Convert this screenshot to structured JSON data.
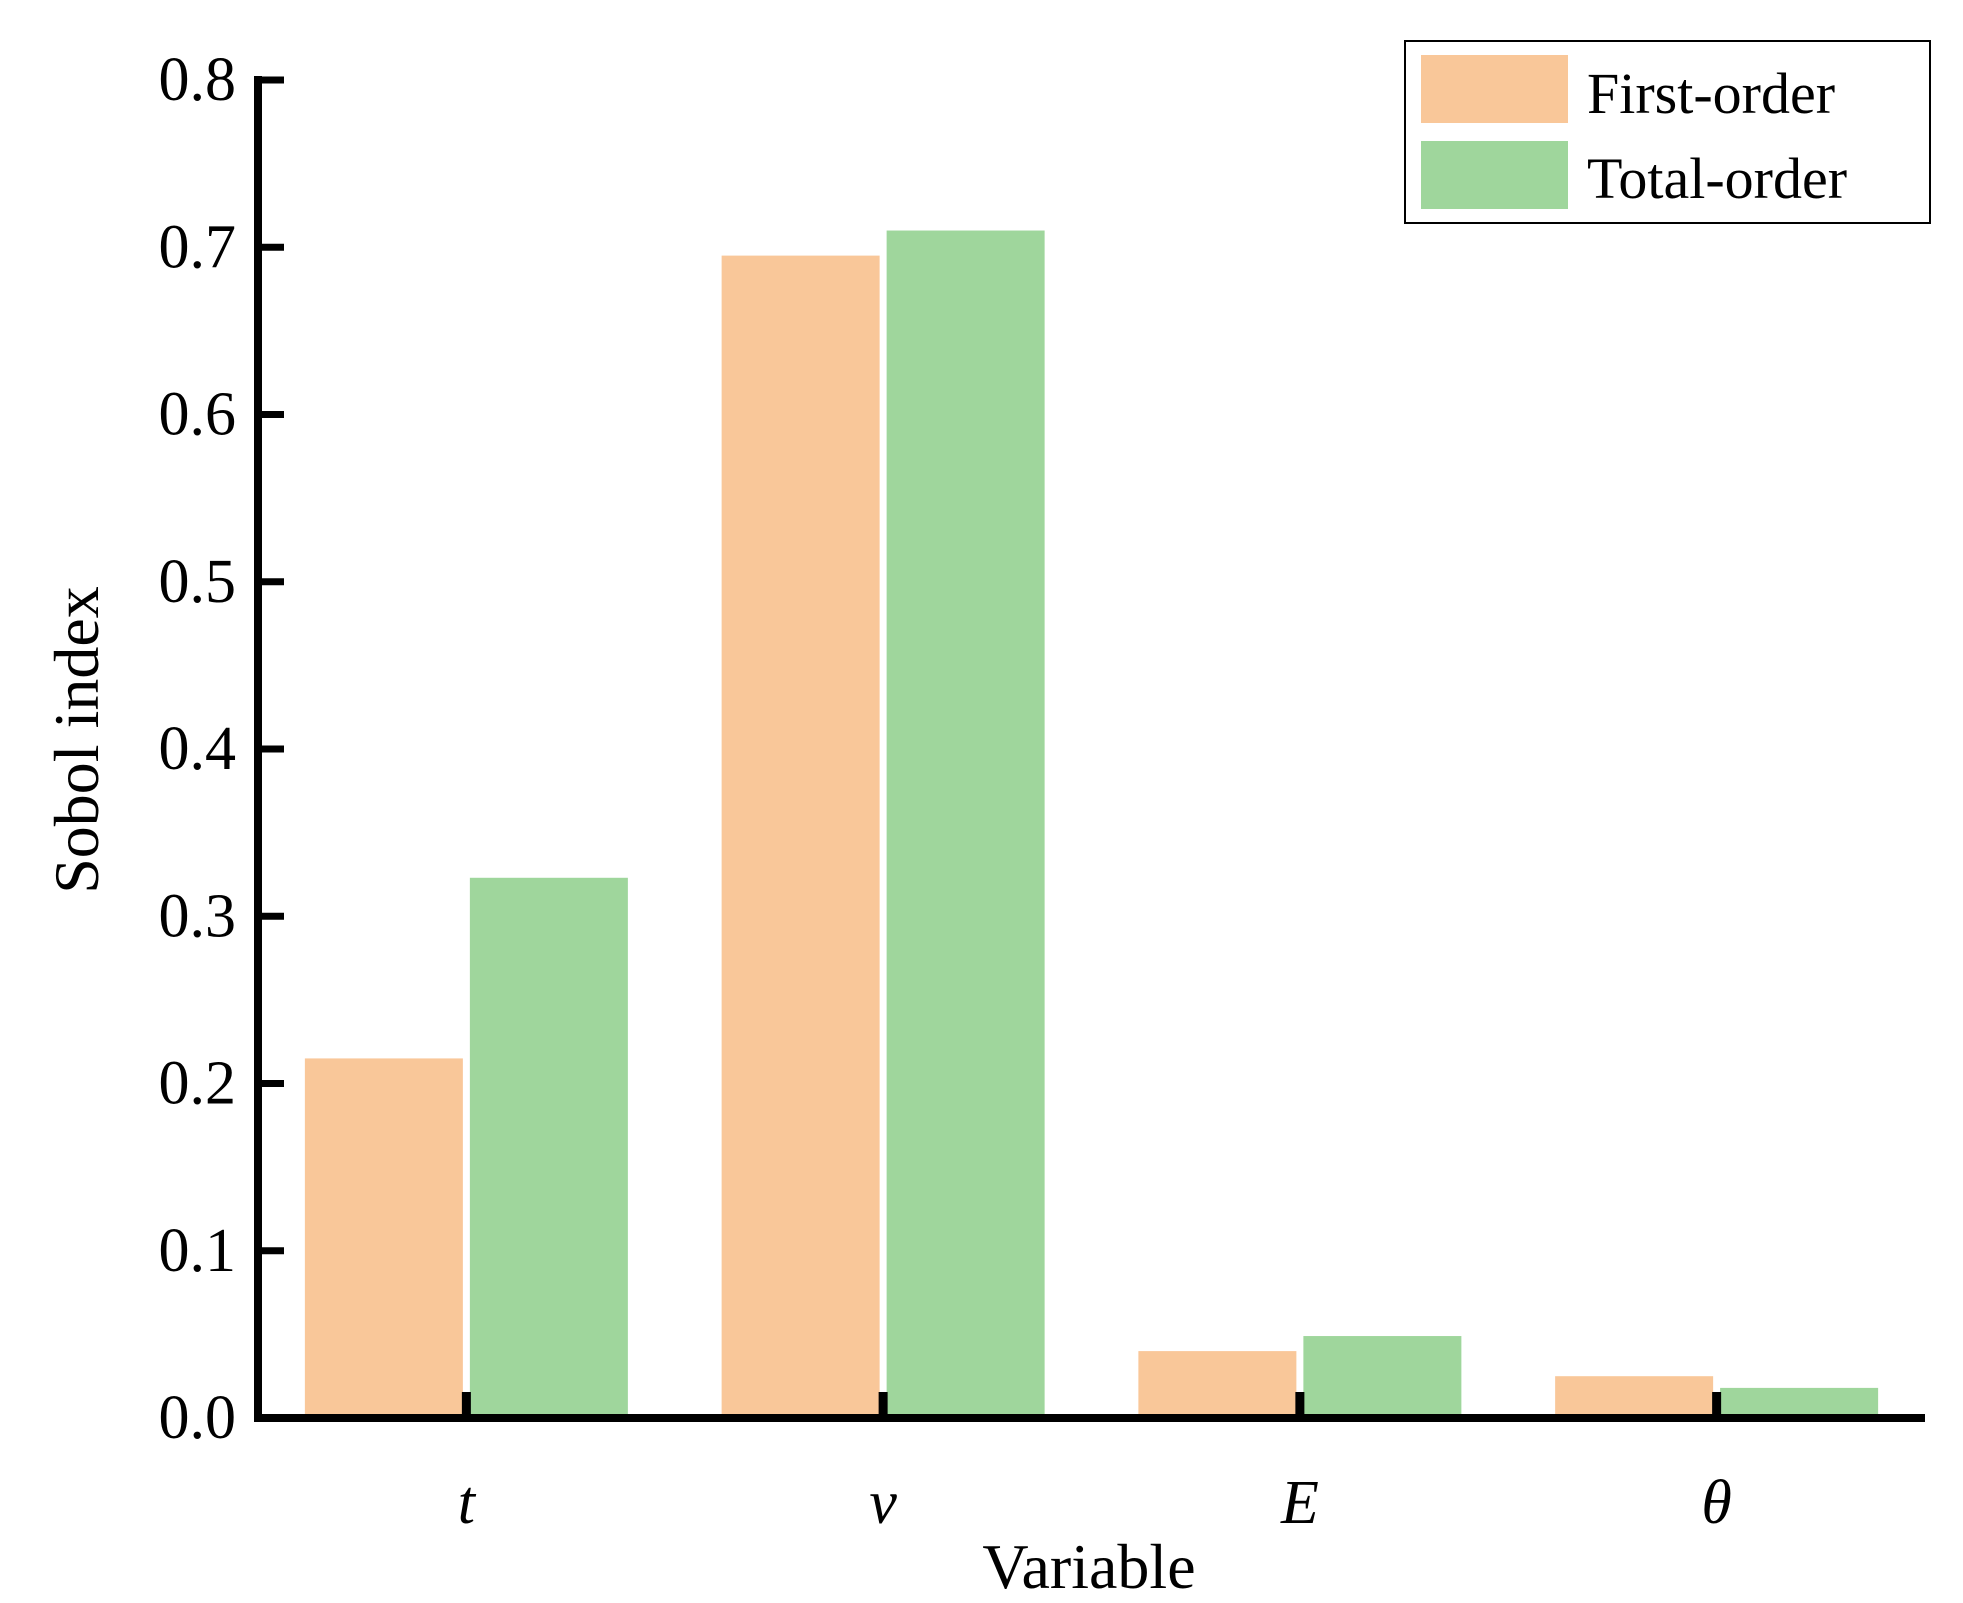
{
  "chart_data": {
    "type": "bar",
    "categories": [
      "t",
      "v",
      "E",
      "θ"
    ],
    "series": [
      {
        "name": "First-order",
        "values": [
          0.215,
          0.695,
          0.04,
          0.025
        ]
      },
      {
        "name": "Total-order",
        "values": [
          0.323,
          0.71,
          0.049,
          0.018
        ]
      }
    ],
    "title": "",
    "xlabel": "Variable",
    "ylabel": "Sobol index",
    "ylim": [
      0,
      0.8
    ],
    "yticks": [
      "0.0",
      "0.1",
      "0.2",
      "0.3",
      "0.4",
      "0.5",
      "0.6",
      "0.7",
      "0.8"
    ],
    "grid": false,
    "legend_position": "top-right",
    "colors": {
      "First-order": "#F9C799",
      "Total-order": "#9FD69C",
      "axis": "#000000"
    }
  }
}
